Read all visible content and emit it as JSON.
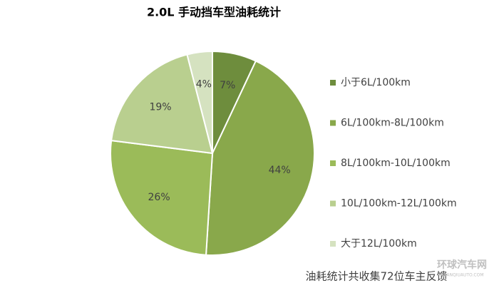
{
  "chart_data": {
    "type": "pie",
    "title": "2.0L 手动挡车型油耗统计",
    "categories": [
      "小于6L/100km",
      "6L/100km-8L/100km",
      "8L/100km-10L/100km",
      "10L/100km-12L/100km",
      "大于12L/100km"
    ],
    "values": [
      7,
      44,
      26,
      19,
      4
    ],
    "value_labels": [
      "7%",
      "44%",
      "26%",
      "19%",
      "4%"
    ],
    "colors": [
      "#6e8d3d",
      "#89a84b",
      "#9bbb59",
      "#b9cf8f",
      "#d5e2c0"
    ],
    "legend": "right",
    "footnote": "油耗统计共收集72位车主反馈",
    "watermark": "环球汽车网",
    "watermark_url": "HUANQIUAUTO.COM"
  }
}
